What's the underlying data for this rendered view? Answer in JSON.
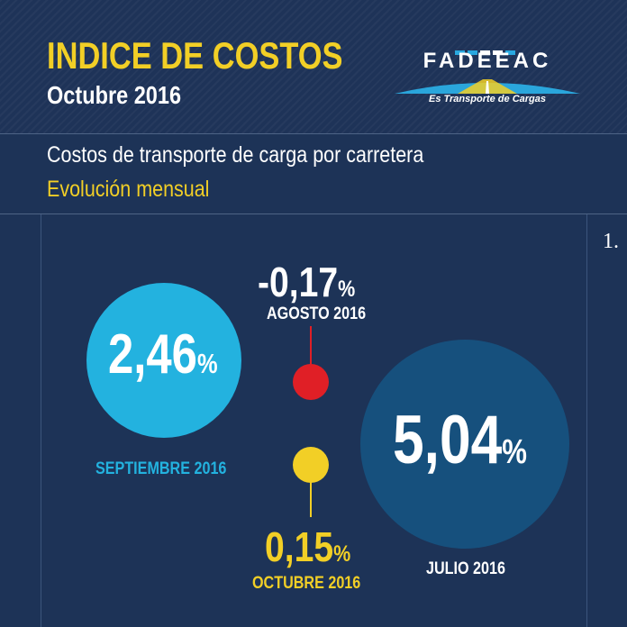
{
  "header": {
    "title": "INDICE DE COSTOS",
    "subtitle": "Octubre 2016"
  },
  "logo": {
    "name": "FADEEAC",
    "tagline": "Es Transporte de Cargas"
  },
  "section": {
    "title": "Costos de transporte de carga por carretera",
    "subtitle": "Evolución mensual"
  },
  "edge_text": "1.",
  "indices": {
    "septiembre": {
      "value": "2,46",
      "unit": "%",
      "label": "SEPTIEMBRE 2016"
    },
    "agosto": {
      "value": "-0,17",
      "unit": "%",
      "label": "AGOSTO 2016"
    },
    "octubre": {
      "value": "0,15",
      "unit": "%",
      "label": "OCTUBRE 2016"
    },
    "julio": {
      "value": "5,04",
      "unit": "%",
      "label": "JULIO 2016"
    }
  },
  "colors": {
    "background": "#1d3357",
    "accent_yellow": "#f2cf26",
    "septiembre_circle": "#23b2df",
    "julio_circle": "#16507d",
    "agosto_marker": "#e01f26",
    "octubre_marker": "#f2cf26"
  }
}
